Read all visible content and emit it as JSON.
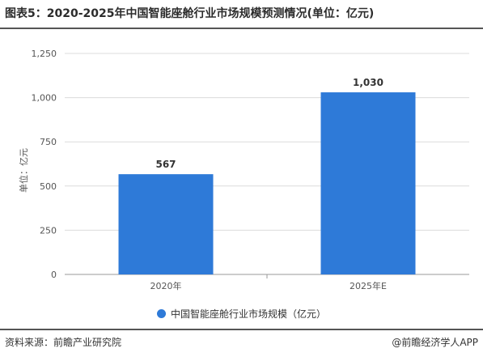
{
  "title": "图表5：2020-2025年中国智能座舱行业市场规模预测情况(单位：亿元)",
  "source": "资料来源：前瞻产业研究院",
  "brand": "@前瞻经济学人APP",
  "chart_data": {
    "type": "bar",
    "categories": [
      "2020年",
      "2025年E"
    ],
    "series": [
      {
        "name": "中国智能座舱行业市场规模（亿元）",
        "values": [
          567,
          1030
        ],
        "labels": [
          "567",
          "1,030"
        ],
        "color": "#2e7ad8"
      }
    ],
    "ylabel": "单位：亿元",
    "ylim": [
      0,
      1250
    ],
    "yticks": [
      0,
      250,
      500,
      750,
      1000,
      1250
    ],
    "grid": true,
    "legend": "bottom"
  }
}
